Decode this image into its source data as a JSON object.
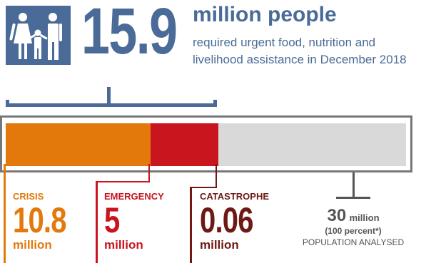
{
  "header": {
    "icon": "family-icon",
    "value": "15.9",
    "headline": "million people",
    "subline": "required urgent food, nutrition and livelihood assistance in December 2018"
  },
  "colors": {
    "brand": "#4a6b97",
    "crisis": "#e4790b",
    "emergency": "#c9151e",
    "catastrophe": "#6e1a14",
    "remainder": "#d9d9d9"
  },
  "phases": [
    {
      "label": "CRISIS",
      "value": "10.8",
      "unit": "million"
    },
    {
      "label": "EMERGENCY",
      "value": "5",
      "unit": "million"
    },
    {
      "label": "CATASTROPHE",
      "value": "0.06",
      "unit": "million"
    }
  ],
  "total": {
    "value": "30",
    "unit": "million",
    "percent": "(100 percent*)",
    "label": "POPULATION ANALYSED"
  }
}
